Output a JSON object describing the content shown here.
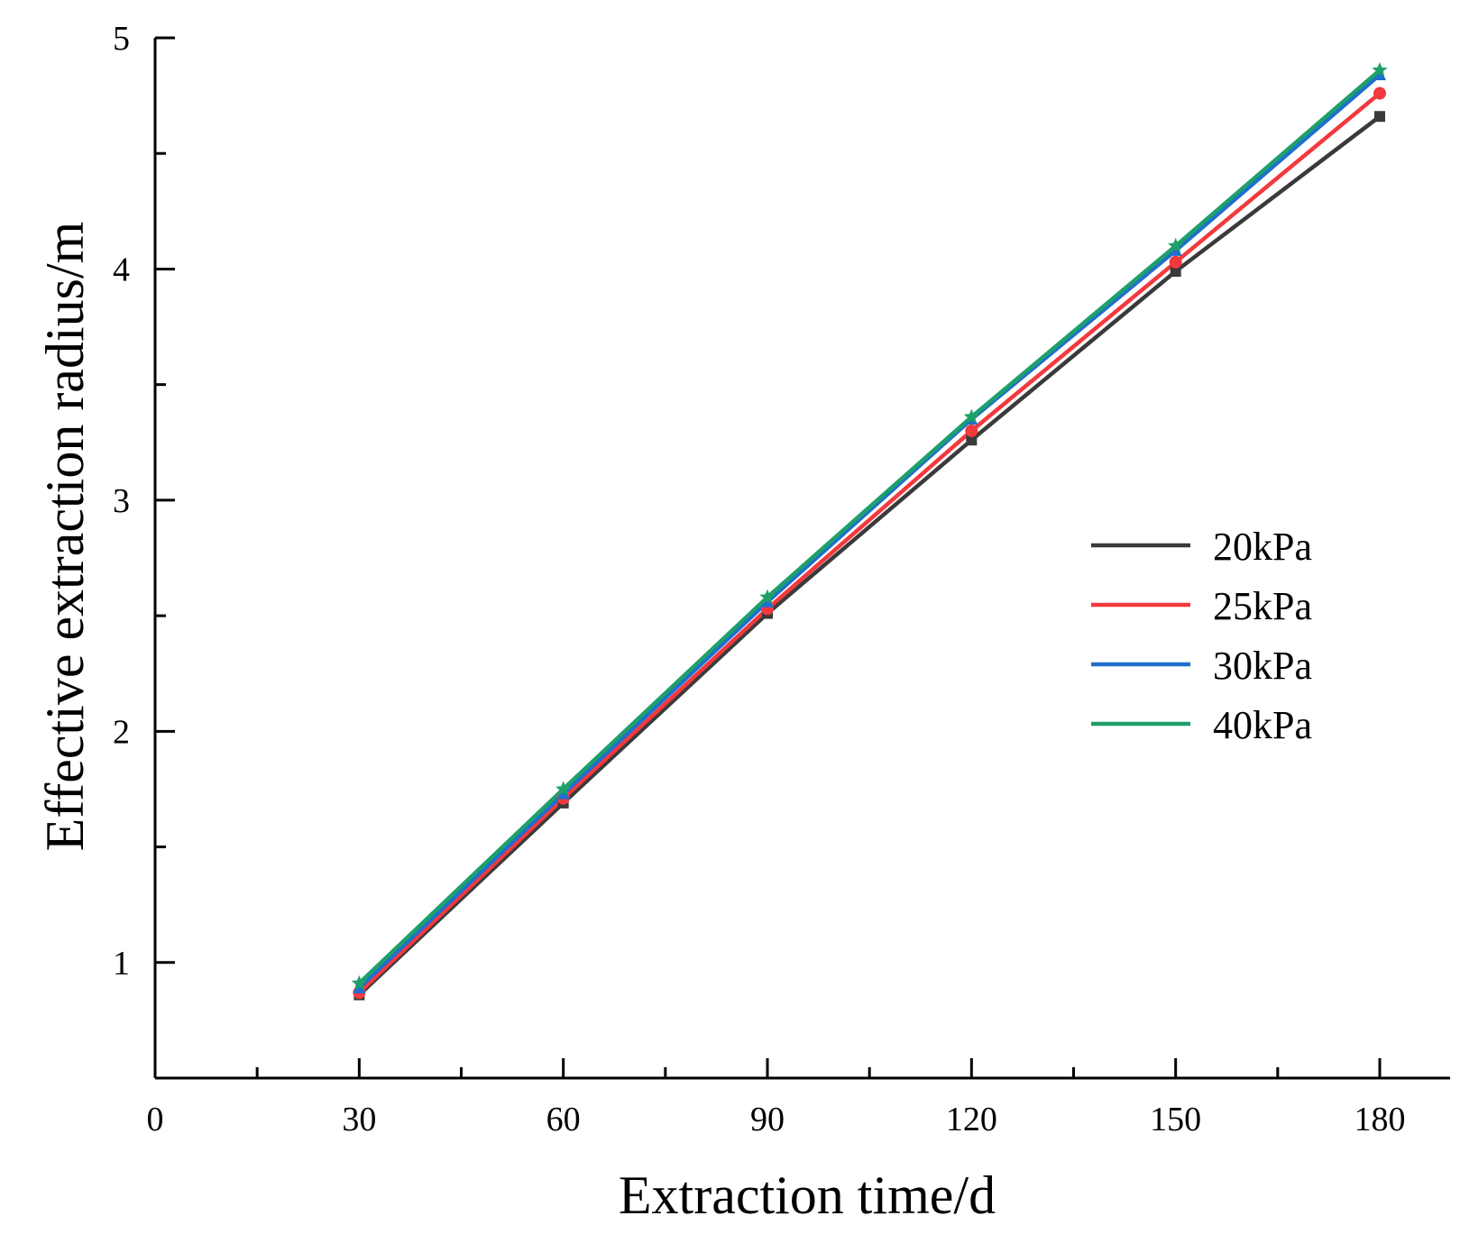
{
  "chart_data": {
    "type": "line",
    "title": "",
    "xlabel": "Extraction time/d",
    "ylabel": "Effective extraction radius/m",
    "x": [
      30,
      60,
      90,
      120,
      150,
      180
    ],
    "xlim": [
      0,
      190
    ],
    "ylim": [
      0.5,
      5
    ],
    "xticks": [
      0,
      30,
      60,
      90,
      120,
      150,
      180
    ],
    "xtick_labels": [
      "0",
      "30",
      "60",
      "90",
      "120",
      "150",
      "180"
    ],
    "yticks": [
      1,
      2,
      3,
      4,
      5
    ],
    "ytick_labels": [
      "1",
      "2",
      "3",
      "4",
      "5"
    ],
    "grid": false,
    "legend_position": "right-middle",
    "series": [
      {
        "name": "20kPa",
        "color": "#3a3a3a",
        "marker": "square",
        "values": [
          0.86,
          1.69,
          2.51,
          3.26,
          3.99,
          4.66
        ]
      },
      {
        "name": "25kPa",
        "color": "#f2393e",
        "marker": "circle",
        "values": [
          0.87,
          1.71,
          2.53,
          3.3,
          4.03,
          4.76
        ]
      },
      {
        "name": "30kPa",
        "color": "#1f6fcf",
        "marker": "triangle",
        "values": [
          0.89,
          1.73,
          2.56,
          3.35,
          4.08,
          4.84
        ]
      },
      {
        "name": "40kPa",
        "color": "#1da06a",
        "marker": "star",
        "values": [
          0.91,
          1.75,
          2.58,
          3.36,
          4.1,
          4.86
        ]
      }
    ]
  }
}
